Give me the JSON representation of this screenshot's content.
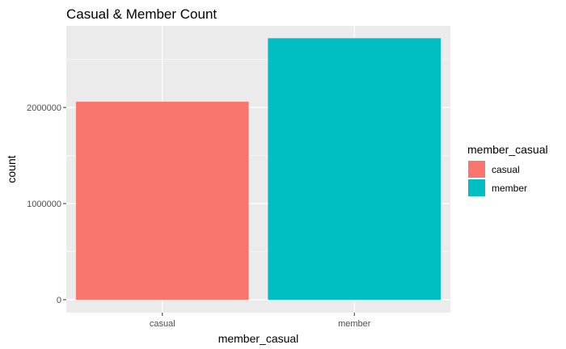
{
  "chart_data": {
    "type": "bar",
    "title": "Casual & Member Count",
    "xlabel": "member_casual",
    "ylabel": "count",
    "categories": [
      "casual",
      "member"
    ],
    "values": [
      2060000,
      2720000
    ],
    "colors": [
      "#F8766D",
      "#00BFC4"
    ],
    "ylim": [
      0,
      2800000
    ],
    "yticks": [
      0,
      1000000,
      2000000
    ],
    "ytick_labels": [
      "0",
      "1000000",
      "2000000"
    ],
    "grid": true,
    "legend": {
      "title": "member_casual",
      "position": "right",
      "entries": [
        {
          "label": "casual",
          "color": "#F8766D"
        },
        {
          "label": "member",
          "color": "#00BFC4"
        }
      ]
    }
  }
}
